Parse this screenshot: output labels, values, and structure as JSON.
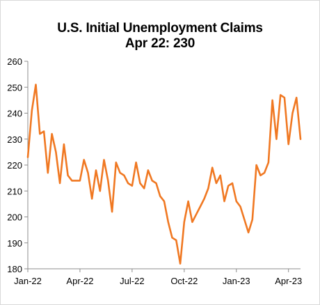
{
  "chart_data": {
    "type": "line",
    "title": "U.S. Initial Unemployment Claims",
    "subtitle": "Apr 22: 230",
    "xlabel": "",
    "ylabel": "",
    "ylim": [
      180,
      260
    ],
    "yticks": [
      180,
      190,
      200,
      210,
      220,
      230,
      240,
      250,
      260
    ],
    "xtick_labels": [
      "Jan-22",
      "Apr-22",
      "Jul-22",
      "Oct-22",
      "Jan-23",
      "Apr-23"
    ],
    "grid": false,
    "legend": "none",
    "line_color": "#f07822",
    "series": [
      {
        "values": [
          223,
          241,
          251,
          232,
          233,
          217,
          232,
          225,
          213,
          228,
          216,
          214,
          214,
          214,
          222,
          217,
          207,
          218,
          210,
          222,
          214,
          202,
          221,
          217,
          216,
          213,
          212,
          221,
          213,
          211,
          218,
          214,
          213,
          208,
          206,
          198,
          192,
          191,
          182,
          198,
          206,
          198,
          201,
          204,
          207,
          211,
          219,
          213,
          216,
          206,
          212,
          213,
          206,
          204,
          199,
          194,
          199,
          220,
          216,
          217,
          221,
          245,
          230,
          247,
          246,
          228,
          240,
          246,
          230
        ]
      }
    ]
  }
}
